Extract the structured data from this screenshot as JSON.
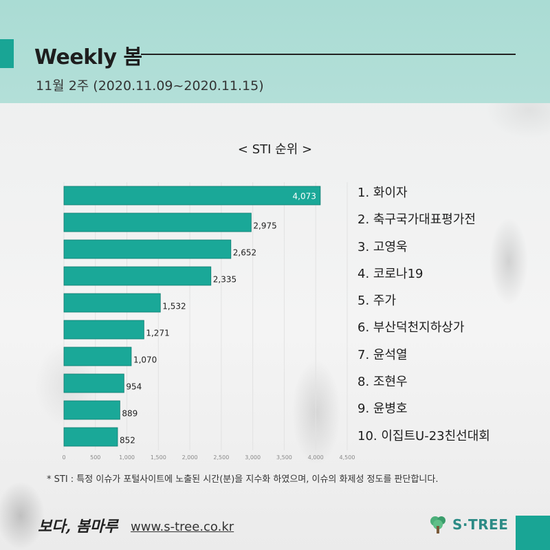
{
  "header": {
    "title": "Weekly 봄",
    "subtitle": "11월 2주 (2020.11.09~2020.11.15)"
  },
  "chart_data": {
    "type": "bar",
    "orientation": "horizontal",
    "title": "< STI 순위 >",
    "categories": [
      "1. 화이자",
      "2. 축구국가대표평가전",
      "3. 고영욱",
      "4. 코로나19",
      "5. 주가",
      "6. 부산덕천지하상가",
      "7. 윤석열",
      "8. 조현우",
      "9. 윤병호",
      "10. 이집트U-23친선대회"
    ],
    "values": [
      4073,
      2975,
      2652,
      2335,
      1532,
      1271,
      1070,
      954,
      889,
      852
    ],
    "value_labels": [
      "4,073",
      "2,975",
      "2,652",
      "2,335",
      "1,532",
      "1,271",
      "1,070",
      "954",
      "889",
      "852"
    ],
    "xlim": [
      0,
      4500
    ],
    "x_ticks": [
      "0",
      "500",
      "1,000",
      "1,500",
      "2,000",
      "2,500",
      "3,000",
      "3,500",
      "4,000",
      "4,500"
    ],
    "grid": true,
    "bar_color": "#1aa898"
  },
  "footnote": "* STI : 특정 이슈가 포털사이트에 노출된 시간(분)을 지수화 하였으며, 이슈의 화제성 정도를 판단합니다.",
  "footer": {
    "brand": "보다, 봄마루",
    "website": "www.s-tree.co.kr",
    "logo_text": "S·TREE",
    "logo_icon": "tree-icon"
  },
  "colors": {
    "accent": "#19a595",
    "header_bg": "#b3dfd8"
  }
}
